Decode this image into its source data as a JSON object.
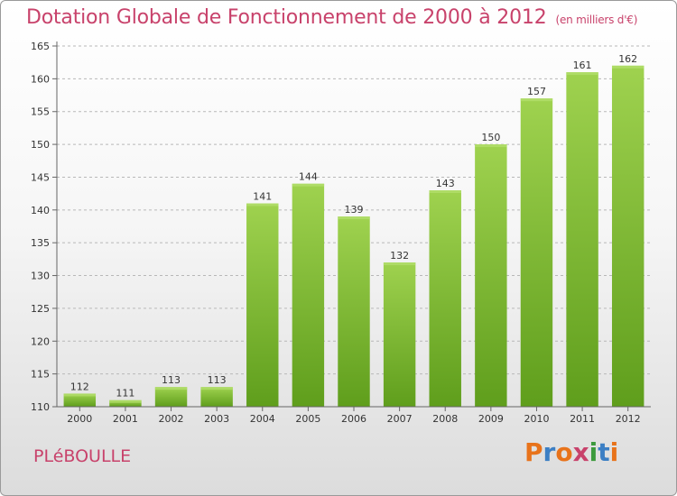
{
  "chart_data": {
    "type": "bar",
    "title": "Dotation Globale de Fonctionnement de 2000 à 2012",
    "subtitle": "(en milliers d'€)",
    "categories": [
      "2000",
      "2001",
      "2002",
      "2003",
      "2004",
      "2005",
      "2006",
      "2007",
      "2008",
      "2009",
      "2010",
      "2011",
      "2012"
    ],
    "values": [
      112,
      111,
      113,
      113,
      141,
      144,
      139,
      132,
      143,
      150,
      157,
      161,
      162
    ],
    "ylim": [
      110,
      165
    ],
    "yticks": [
      "110",
      "115",
      "120",
      "125",
      "130",
      "135",
      "140",
      "145",
      "150",
      "155",
      "160",
      "165"
    ],
    "grid": true,
    "bar_color": "#7dbb2e"
  },
  "footer": {
    "commune": "PLéBOULLE",
    "logo": "Proxiti",
    "logo_colors": [
      "#e8731b",
      "#3c7fc4",
      "#e8731b",
      "#c8426b",
      "#3c9a3c",
      "#3c7fc4",
      "#e8731b"
    ]
  }
}
